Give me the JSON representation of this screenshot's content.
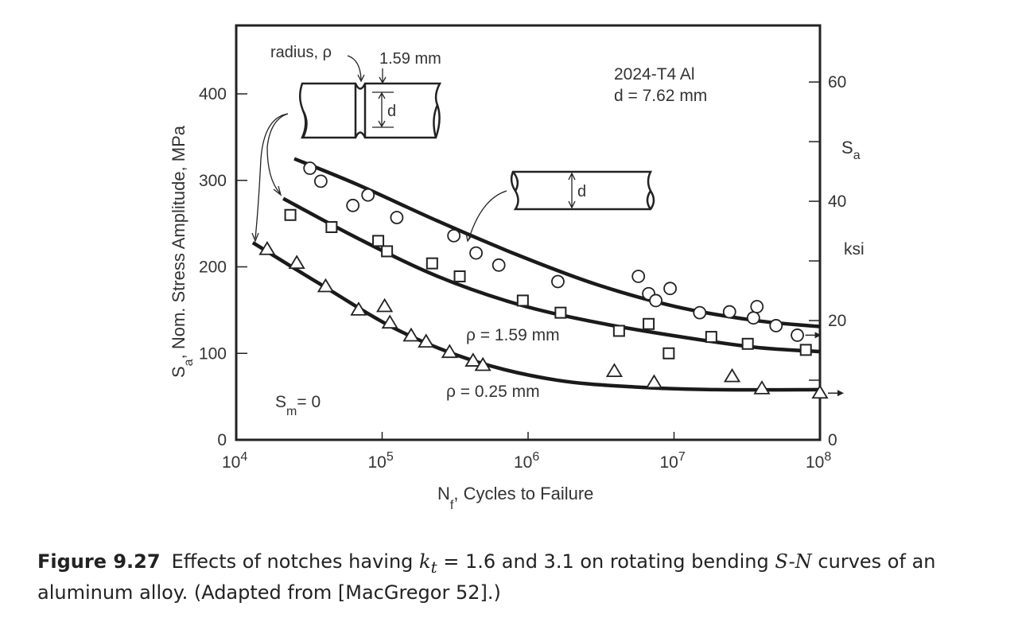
{
  "chart_data": {
    "type": "scatter",
    "xlabel": "N",
    "xlabel_sub": "f",
    "xlabel_rest": ", Cycles to Failure",
    "ylabel": "S",
    "ylabel_sub": "a",
    "ylabel_rest": ", Nom. Stress Amplitude, MPa",
    "y2label": "S",
    "y2label_sub": "a",
    "y2unit": "ksi",
    "xscale": "log",
    "xlim": [
      10000,
      100000000
    ],
    "ylim": [
      0,
      480
    ],
    "x_ticks": [
      {
        "base": "10",
        "exp": "4"
      },
      {
        "base": "10",
        "exp": "5"
      },
      {
        "base": "10",
        "exp": "6"
      },
      {
        "base": "10",
        "exp": "7"
      },
      {
        "base": "10",
        "exp": "8"
      }
    ],
    "y_ticks": [
      "0",
      "100",
      "200",
      "300",
      "400"
    ],
    "y2_ticks": [
      "0",
      "20",
      "40",
      "60"
    ],
    "y2_minor_ksi": [
      10,
      30,
      50
    ],
    "grid": false,
    "annotations": {
      "material": "2024-T4 Al",
      "diameter": "d = 7.62 mm",
      "rho_159": "ρ = 1.59 mm",
      "rho_025": "ρ = 0.25 mm",
      "sm": "S",
      "sm_sub": "m",
      "sm_rest": "= 0",
      "radius": "radius, ρ",
      "notch_width": "1.59 mm",
      "d_notched": "d",
      "d_plain": "d"
    },
    "series": [
      {
        "marker": "circle",
        "points": [
          [
            32000.0,
            314
          ],
          [
            38000.0,
            299
          ],
          [
            63000.0,
            271
          ],
          [
            80000.0,
            283
          ],
          [
            126000.0,
            257
          ],
          [
            310000.0,
            236
          ],
          [
            440000.0,
            216
          ],
          [
            630000.0,
            202
          ],
          [
            1600000.0,
            183
          ],
          [
            5700000.0,
            189
          ],
          [
            6700000.0,
            169
          ],
          [
            7500000.0,
            161
          ],
          [
            9400000.0,
            175
          ],
          [
            15000000.0,
            147
          ],
          [
            24000000.0,
            148
          ],
          [
            35000000.0,
            141
          ],
          [
            37000000.0,
            154
          ],
          [
            50000000.0,
            132
          ],
          [
            70000000.0,
            121
          ]
        ],
        "runout": [
          70000000.0,
          121
        ],
        "curve": [
          [
            25000.0,
            325
          ],
          [
            68000.0,
            295
          ],
          [
            240000.0,
            253
          ],
          [
            840000.0,
            214
          ],
          [
            2900000.0,
            180
          ],
          [
            10300000.0,
            154
          ],
          [
            36000000.0,
            138
          ],
          [
            100000000.0,
            131
          ]
        ]
      },
      {
        "marker": "square",
        "points": [
          [
            23500.0,
            260
          ],
          [
            45000.0,
            246
          ],
          [
            94000.0,
            230
          ],
          [
            108000.0,
            218
          ],
          [
            220000.0,
            204
          ],
          [
            340000.0,
            189
          ],
          [
            920000.0,
            161
          ],
          [
            1670000.0,
            147
          ],
          [
            4200000.0,
            126
          ],
          [
            6700000.0,
            134
          ],
          [
            9200000.0,
            100
          ],
          [
            18000000.0,
            119
          ],
          [
            32000000.0,
            111
          ],
          [
            80000000.0,
            104
          ]
        ],
        "curve": [
          [
            21000.0,
            279
          ],
          [
            68000.0,
            233
          ],
          [
            240000.0,
            189
          ],
          [
            840000.0,
            157
          ],
          [
            2900000.0,
            136
          ],
          [
            10300000.0,
            120
          ],
          [
            36000000.0,
            107
          ],
          [
            100000000.0,
            102
          ]
        ]
      },
      {
        "marker": "triangle",
        "points": [
          [
            16300.0,
            220
          ],
          [
            26000.0,
            204
          ],
          [
            41000.0,
            177
          ],
          [
            69000.0,
            150
          ],
          [
            104000.0,
            154
          ],
          [
            113000.0,
            135
          ],
          [
            158000.0,
            120
          ],
          [
            200000.0,
            113
          ],
          [
            290000.0,
            101
          ],
          [
            420000.0,
            91
          ],
          [
            490000.0,
            86
          ],
          [
            3900000.0,
            79
          ],
          [
            7300000.0,
            66
          ],
          [
            25000000.0,
            73
          ],
          [
            40000000.0,
            59
          ],
          [
            100000000.0,
            54
          ]
        ],
        "runout": [
          100000000.0,
          54
        ],
        "curve": [
          [
            13000.0,
            228
          ],
          [
            36000.0,
            182
          ],
          [
            128000.0,
            127
          ],
          [
            450000.0,
            90
          ],
          [
            1570000.0,
            69
          ],
          [
            5500000.0,
            61
          ],
          [
            19300000.0,
            58
          ],
          [
            100000000.0,
            58
          ]
        ]
      }
    ]
  },
  "caption": {
    "label": "Figure 9.27",
    "text1": "Effects of notches having ",
    "k": "k",
    "k_sub": "t",
    "text2": " = 1.6 and 3.1 on rotating bending ",
    "sn": "S-N",
    "text3": " curves of an aluminum alloy. (Adapted from [MacGregor 52].)"
  }
}
